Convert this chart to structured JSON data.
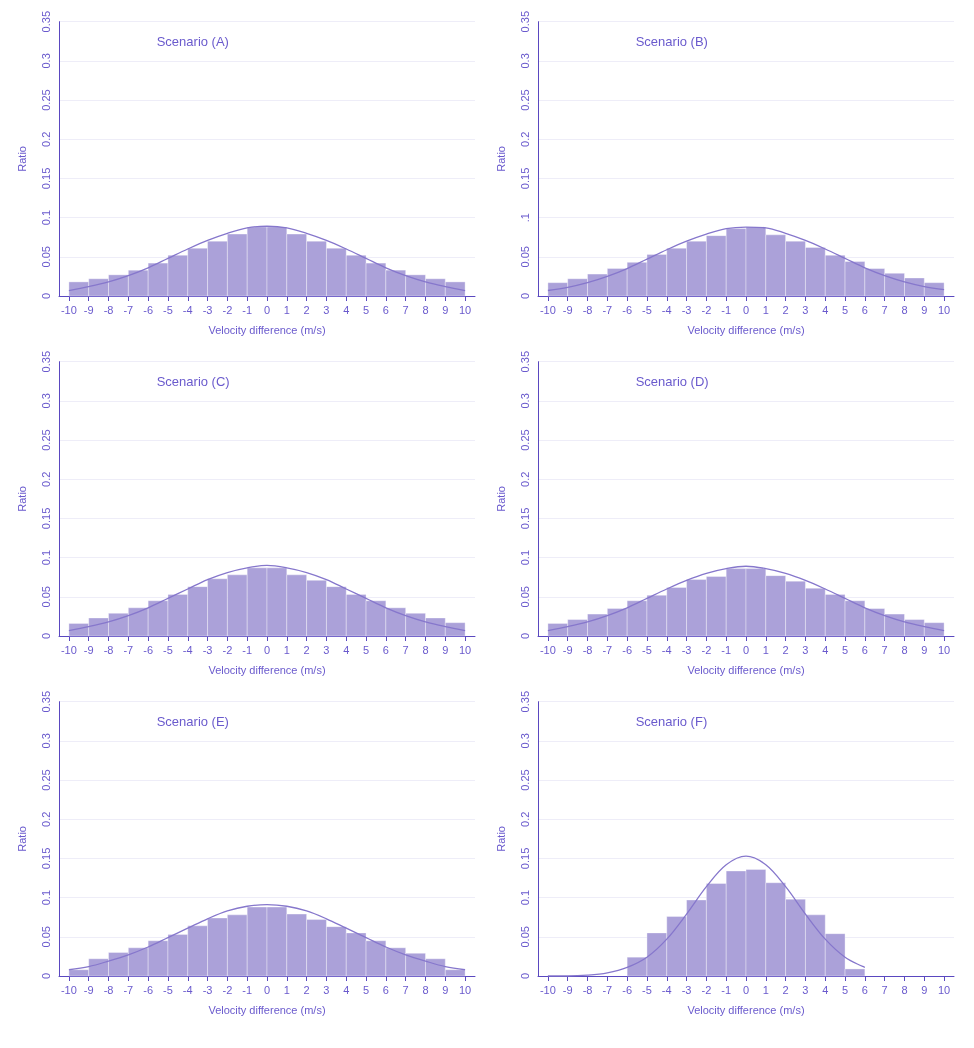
{
  "chart_data": [
    {
      "type": "histogram",
      "title": "Scenario (A)",
      "xlabel": "Velocity difference (m/s)",
      "ylabel": "Ratio",
      "xlim": [
        -10.5,
        10.5
      ],
      "xticks": [
        -10,
        -9,
        -8,
        -7,
        -6,
        -5,
        -4,
        -3,
        -2,
        -1,
        0,
        1,
        2,
        3,
        4,
        5,
        6,
        7,
        8,
        9,
        10
      ],
      "ylim": [
        0,
        0.35
      ],
      "yticks": [
        0,
        0.05,
        0.1,
        0.15,
        0.2,
        0.25,
        0.3,
        0.35
      ],
      "grid": "y",
      "series": [
        {
          "color": "#aba1d9",
          "bins": [
            -10,
            -9,
            -8,
            -7,
            -6,
            -5,
            -4,
            -3,
            -2,
            -1,
            0,
            1,
            2,
            3,
            4,
            5,
            6,
            7,
            8,
            9,
            10
          ],
          "values": [
            0.018,
            0.022,
            0.027,
            0.033,
            0.042,
            0.052,
            0.061,
            0.07,
            0.079,
            0.088,
            0.088,
            0.079,
            0.07,
            0.061,
            0.052,
            0.042,
            0.033,
            0.027,
            0.022,
            0.018
          ]
        },
        {
          "type": "line",
          "color": "#8677cc",
          "x": [
            -10,
            -9,
            -8,
            -7,
            -6,
            -5,
            -4,
            -3,
            -2,
            -1,
            0,
            1,
            2,
            3,
            4,
            5,
            6,
            7,
            8,
            9,
            10
          ],
          "values": [
            0.007,
            0.012,
            0.018,
            0.026,
            0.036,
            0.048,
            0.06,
            0.071,
            0.08,
            0.087,
            0.089,
            0.087,
            0.08,
            0.071,
            0.06,
            0.048,
            0.036,
            0.026,
            0.018,
            0.012,
            0.007
          ]
        }
      ]
    },
    {
      "type": "histogram",
      "title": "Scenario (B)",
      "xlabel": "Velocity difference (m/s)",
      "ylabel": "Ratio",
      "xlim": [
        -10.5,
        10.5
      ],
      "xticks": [
        -10,
        -9,
        -8,
        -7,
        -6,
        -5,
        -4,
        -3,
        -2,
        -1,
        0,
        1,
        2,
        3,
        4,
        5,
        6,
        7,
        8,
        9,
        10
      ],
      "ylim": [
        0,
        0.35
      ],
      "yticks": [
        0,
        0.05,
        {
          "value": 0.1,
          "label": ".1"
        },
        0.15,
        0.2,
        0.25,
        0.3,
        0.35
      ],
      "grid": "y",
      "series": [
        {
          "color": "#aba1d9",
          "bins": [
            -10,
            -9,
            -8,
            -7,
            -6,
            -5,
            -4,
            -3,
            -2,
            -1,
            0,
            1,
            2,
            3,
            4,
            5,
            6,
            7,
            8,
            9,
            10
          ],
          "values": [
            0.017,
            0.022,
            0.028,
            0.035,
            0.043,
            0.053,
            0.061,
            0.07,
            0.077,
            0.086,
            0.088,
            0.078,
            0.07,
            0.062,
            0.052,
            0.044,
            0.035,
            0.029,
            0.023,
            0.017
          ]
        },
        {
          "type": "line",
          "color": "#8677cc",
          "x": [
            -10,
            -9,
            -8,
            -7,
            -6,
            -5,
            -4,
            -3,
            -2,
            -1,
            0,
            1,
            2,
            3,
            4,
            5,
            6,
            7,
            8,
            9,
            10
          ],
          "values": [
            0.007,
            0.011,
            0.017,
            0.025,
            0.035,
            0.047,
            0.059,
            0.07,
            0.079,
            0.086,
            0.088,
            0.087,
            0.08,
            0.071,
            0.06,
            0.048,
            0.036,
            0.026,
            0.018,
            0.012,
            0.008
          ]
        }
      ]
    },
    {
      "type": "histogram",
      "title": "Scenario (C)",
      "xlabel": "Velocity difference (m/s)",
      "ylabel": "Ratio",
      "xlim": [
        -10.5,
        10.5
      ],
      "xticks": [
        -10,
        -9,
        -8,
        -7,
        -6,
        -5,
        -4,
        -3,
        -2,
        -1,
        0,
        1,
        2,
        3,
        4,
        5,
        6,
        7,
        8,
        9,
        10
      ],
      "ylim": [
        0,
        0.35
      ],
      "yticks": [
        0,
        0.05,
        0.1,
        0.15,
        0.2,
        0.25,
        0.3,
        0.35
      ],
      "grid": "y",
      "series": [
        {
          "color": "#aba1d9",
          "bins": [
            -10,
            -9,
            -8,
            -7,
            -6,
            -5,
            -4,
            -3,
            -2,
            -1,
            0,
            1,
            2,
            3,
            4,
            5,
            6,
            7,
            8,
            9,
            10
          ],
          "values": [
            0.016,
            0.023,
            0.029,
            0.036,
            0.045,
            0.053,
            0.063,
            0.073,
            0.078,
            0.087,
            0.087,
            0.078,
            0.071,
            0.063,
            0.053,
            0.045,
            0.036,
            0.029,
            0.023,
            0.017
          ]
        },
        {
          "type": "line",
          "color": "#8677cc",
          "x": [
            -10,
            -9,
            -8,
            -7,
            -6,
            -5,
            -4,
            -3,
            -2,
            -1,
            0,
            1,
            2,
            3,
            4,
            5,
            6,
            7,
            8,
            9,
            10
          ],
          "values": [
            0.007,
            0.012,
            0.018,
            0.026,
            0.036,
            0.048,
            0.06,
            0.072,
            0.081,
            0.087,
            0.09,
            0.087,
            0.081,
            0.072,
            0.06,
            0.048,
            0.036,
            0.026,
            0.018,
            0.012,
            0.007
          ]
        }
      ]
    },
    {
      "type": "histogram",
      "title": "Scenario (D)",
      "xlabel": "Velocity difference (m/s)",
      "ylabel": "Ratio",
      "xlim": [
        -10.5,
        10.5
      ],
      "xticks": [
        -10,
        -9,
        -8,
        -7,
        -6,
        -5,
        -4,
        -3,
        -2,
        -1,
        0,
        1,
        2,
        3,
        4,
        5,
        6,
        7,
        8,
        9,
        10
      ],
      "ylim": [
        0,
        0.35
      ],
      "yticks": [
        0,
        0.05,
        0.1,
        0.15,
        0.2,
        0.25,
        0.3,
        0.35
      ],
      "grid": "y",
      "series": [
        {
          "color": "#aba1d9",
          "bins": [
            -10,
            -9,
            -8,
            -7,
            -6,
            -5,
            -4,
            -3,
            -2,
            -1,
            0,
            1,
            2,
            3,
            4,
            5,
            6,
            7,
            8,
            9,
            10
          ],
          "values": [
            0.016,
            0.021,
            0.028,
            0.035,
            0.045,
            0.052,
            0.062,
            0.072,
            0.076,
            0.086,
            0.086,
            0.077,
            0.07,
            0.061,
            0.053,
            0.045,
            0.035,
            0.028,
            0.021,
            0.017
          ]
        },
        {
          "type": "line",
          "color": "#8677cc",
          "x": [
            -10,
            -9,
            -8,
            -7,
            -6,
            -5,
            -4,
            -3,
            -2,
            -1,
            0,
            1,
            2,
            3,
            4,
            5,
            6,
            7,
            8,
            9,
            10
          ],
          "values": [
            0.007,
            0.012,
            0.018,
            0.026,
            0.036,
            0.048,
            0.06,
            0.071,
            0.08,
            0.086,
            0.089,
            0.086,
            0.08,
            0.071,
            0.06,
            0.048,
            0.036,
            0.026,
            0.018,
            0.012,
            0.007
          ]
        }
      ]
    },
    {
      "type": "histogram",
      "title": "Scenario (E)",
      "xlabel": "Velocity difference (m/s)",
      "ylabel": "Ratio",
      "xlim": [
        -10.5,
        10.5
      ],
      "xticks": [
        -10,
        -9,
        -8,
        -7,
        -6,
        -5,
        -4,
        -3,
        -2,
        -1,
        0,
        1,
        2,
        3,
        4,
        5,
        6,
        7,
        8,
        9,
        10
      ],
      "ylim": [
        0,
        0.35
      ],
      "yticks": [
        0,
        0.05,
        0.1,
        0.15,
        0.2,
        0.25,
        0.3,
        0.35
      ],
      "grid": "y",
      "series": [
        {
          "color": "#aba1d9",
          "bins": [
            -10,
            -9,
            -8,
            -7,
            -6,
            -5,
            -4,
            -3,
            -2,
            -1,
            0,
            1,
            2,
            3,
            4,
            5,
            6,
            7,
            8,
            9,
            10
          ],
          "values": [
            0.008,
            0.022,
            0.03,
            0.036,
            0.045,
            0.053,
            0.064,
            0.074,
            0.078,
            0.088,
            0.088,
            0.079,
            0.072,
            0.063,
            0.055,
            0.045,
            0.036,
            0.029,
            0.022,
            0.008
          ]
        },
        {
          "type": "line",
          "color": "#8677cc",
          "x": [
            -10,
            -9,
            -8,
            -7,
            -6,
            -5,
            -4,
            -3,
            -2,
            -1,
            0,
            1,
            2,
            3,
            4,
            5,
            6,
            7,
            8,
            9,
            10
          ],
          "values": [
            0.008,
            0.012,
            0.019,
            0.027,
            0.037,
            0.049,
            0.061,
            0.073,
            0.083,
            0.089,
            0.091,
            0.089,
            0.083,
            0.073,
            0.061,
            0.049,
            0.037,
            0.027,
            0.019,
            0.012,
            0.008
          ]
        }
      ]
    },
    {
      "type": "histogram",
      "title": "Scenario (F)",
      "xlabel": "Velocity difference (m/s)",
      "ylabel": "Ratio",
      "xlim": [
        -10.5,
        10.5
      ],
      "xticks": [
        -10,
        -9,
        -8,
        -7,
        -6,
        -5,
        -4,
        -3,
        -2,
        -1,
        0,
        1,
        2,
        3,
        4,
        5,
        6,
        7,
        8,
        9,
        10
      ],
      "ylim": [
        0,
        0.35
      ],
      "yticks": [
        0,
        0.05,
        0.1,
        0.15,
        0.2,
        0.25,
        0.3,
        0.35
      ],
      "grid": "y",
      "series": [
        {
          "color": "#aba1d9",
          "bins": [
            -6,
            -5,
            -4,
            -3,
            -2,
            -1,
            0,
            1,
            2,
            3,
            4,
            5,
            6
          ],
          "values": [
            0.024,
            0.055,
            0.076,
            0.097,
            0.118,
            0.134,
            0.136,
            0.119,
            0.098,
            0.078,
            0.054,
            0.009
          ]
        },
        {
          "type": "line",
          "color": "#8677cc",
          "x": [
            -10,
            -9,
            -8,
            -7,
            -6,
            -5,
            -4,
            -3,
            -2,
            -1,
            0,
            1,
            2,
            3,
            4,
            5,
            6
          ],
          "values": [
            0,
            0,
            0.001,
            0.004,
            0.011,
            0.024,
            0.047,
            0.079,
            0.114,
            0.142,
            0.153,
            0.142,
            0.114,
            0.079,
            0.047,
            0.024,
            0.011
          ]
        }
      ]
    }
  ]
}
